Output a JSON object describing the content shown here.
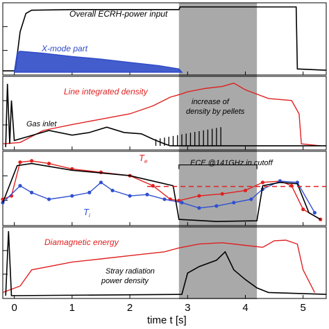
{
  "chart_data": [
    {
      "type": "line",
      "series": [
        {
          "name": "Overall ECRH-power input",
          "color": "#000000",
          "points": [
            [
              -0.2,
              0.02
            ],
            [
              0.0,
              0.02
            ],
            [
              0.02,
              0.05
            ],
            [
              0.1,
              0.62
            ],
            [
              0.2,
              0.9
            ],
            [
              0.3,
              0.95
            ],
            [
              1.0,
              0.96
            ],
            [
              2.0,
              0.96
            ],
            [
              2.85,
              0.96
            ],
            [
              2.87,
              1.0
            ],
            [
              3.5,
              1.0
            ],
            [
              4.0,
              1.0
            ],
            [
              4.6,
              1.0
            ],
            [
              4.88,
              1.0
            ],
            [
              4.9,
              0.05
            ],
            [
              5.4,
              0.03
            ]
          ]
        },
        {
          "name": "X-mode part",
          "color": "#2f4bc7",
          "points": [
            [
              0.0,
              0.0
            ],
            [
              0.05,
              0.3
            ],
            [
              0.1,
              0.32
            ],
            [
              0.5,
              0.29
            ],
            [
              1.0,
              0.24
            ],
            [
              1.5,
              0.2
            ],
            [
              2.0,
              0.15
            ],
            [
              2.5,
              0.1
            ],
            [
              2.85,
              0.05
            ],
            [
              2.9,
              0.0
            ]
          ]
        }
      ]
    },
    {
      "type": "line",
      "series": [
        {
          "name": "Line integrated density",
          "color": "#e02020",
          "points": [
            [
              -0.2,
              0.05
            ],
            [
              0.1,
              0.07
            ],
            [
              0.5,
              0.25
            ],
            [
              1.0,
              0.34
            ],
            [
              1.5,
              0.42
            ],
            [
              2.0,
              0.5
            ],
            [
              2.4,
              0.62
            ],
            [
              2.7,
              0.75
            ],
            [
              2.9,
              0.8
            ],
            [
              3.0,
              0.83
            ],
            [
              3.3,
              0.88
            ],
            [
              3.6,
              0.91
            ],
            [
              3.8,
              0.96
            ],
            [
              4.0,
              0.86
            ],
            [
              4.4,
              0.73
            ],
            [
              4.8,
              0.7
            ],
            [
              4.93,
              0.5
            ],
            [
              4.97,
              0.05
            ],
            [
              5.3,
              0.02
            ]
          ]
        },
        {
          "name": "Gas inlet",
          "color": "#000000",
          "points": [
            [
              -0.15,
              0.0
            ],
            [
              -0.12,
              0.95
            ],
            [
              -0.08,
              0.05
            ],
            [
              -0.05,
              0.7
            ],
            [
              0.0,
              0.1
            ],
            [
              0.2,
              0.15
            ],
            [
              0.6,
              0.25
            ],
            [
              1.0,
              0.18
            ],
            [
              1.3,
              0.22
            ],
            [
              1.6,
              0.3
            ],
            [
              1.9,
              0.22
            ],
            [
              2.2,
              0.2
            ],
            [
              2.4,
              0.12
            ],
            [
              2.6,
              0.05
            ],
            [
              2.7,
              0.02
            ],
            [
              5.4,
              0.02
            ]
          ]
        }
      ]
    },
    {
      "type": "line",
      "series": [
        {
          "name": "T_e",
          "color": "#e02020",
          "points": [
            [
              -0.2,
              0.35
            ],
            [
              -0.05,
              0.4
            ],
            [
              0.1,
              0.9
            ],
            [
              0.3,
              0.92
            ],
            [
              0.6,
              0.88
            ],
            [
              1.0,
              0.8
            ],
            [
              1.5,
              0.75
            ],
            [
              2.0,
              0.7
            ],
            [
              2.4,
              0.55
            ],
            [
              2.7,
              0.35
            ],
            [
              2.85,
              0.33
            ],
            [
              3.2,
              0.4
            ],
            [
              3.6,
              0.43
            ],
            [
              4.0,
              0.48
            ],
            [
              4.3,
              0.6
            ],
            [
              4.6,
              0.62
            ],
            [
              4.8,
              0.55
            ],
            [
              5.0,
              0.2
            ],
            [
              5.3,
              0.05
            ]
          ]
        },
        {
          "name": "T_i",
          "color": "#3050d0",
          "points": [
            [
              -0.2,
              0.3
            ],
            [
              0.1,
              0.55
            ],
            [
              0.3,
              0.45
            ],
            [
              0.6,
              0.35
            ],
            [
              1.0,
              0.4
            ],
            [
              1.3,
              0.45
            ],
            [
              1.5,
              0.6
            ],
            [
              1.7,
              0.48
            ],
            [
              2.0,
              0.4
            ],
            [
              2.3,
              0.42
            ],
            [
              2.6,
              0.35
            ],
            [
              2.9,
              0.3
            ],
            [
              3.2,
              0.22
            ],
            [
              3.5,
              0.25
            ],
            [
              3.8,
              0.3
            ],
            [
              4.1,
              0.35
            ],
            [
              4.3,
              0.5
            ],
            [
              4.6,
              0.62
            ],
            [
              4.9,
              0.6
            ],
            [
              5.2,
              0.15
            ]
          ]
        },
        {
          "name": "ECE @141GHz in cutoff",
          "color": "#000000",
          "points": [
            [
              -0.2,
              0.3
            ],
            [
              0.05,
              0.85
            ],
            [
              0.3,
              0.88
            ],
            [
              1.0,
              0.78
            ],
            [
              2.0,
              0.7
            ],
            [
              2.5,
              0.6
            ],
            [
              2.75,
              0.55
            ],
            [
              2.85,
              0.05
            ],
            [
              3.5,
              0.02
            ],
            [
              4.2,
              0.03
            ],
            [
              4.3,
              0.55
            ],
            [
              4.6,
              0.6
            ],
            [
              4.9,
              0.58
            ],
            [
              5.1,
              0.15
            ],
            [
              5.3,
              0.05
            ]
          ]
        }
      ]
    },
    {
      "type": "line",
      "series": [
        {
          "name": "Diamagnetic energy",
          "color": "#e02020",
          "points": [
            [
              -0.2,
              0.05
            ],
            [
              0.1,
              0.15
            ],
            [
              0.3,
              0.4
            ],
            [
              1.0,
              0.52
            ],
            [
              1.5,
              0.57
            ],
            [
              2.0,
              0.62
            ],
            [
              2.6,
              0.68
            ],
            [
              2.85,
              0.74
            ],
            [
              3.2,
              0.8
            ],
            [
              3.6,
              0.82
            ],
            [
              4.0,
              0.78
            ],
            [
              4.3,
              0.75
            ],
            [
              4.5,
              0.85
            ],
            [
              4.7,
              0.86
            ],
            [
              4.9,
              0.8
            ],
            [
              5.0,
              0.4
            ],
            [
              5.2,
              0.05
            ]
          ]
        },
        {
          "name": "Stray radiation power density",
          "color": "#000000",
          "points": [
            [
              -0.15,
              0.0
            ],
            [
              -0.1,
              1.0
            ],
            [
              -0.05,
              0.0
            ],
            [
              2.9,
              0.02
            ],
            [
              3.0,
              0.35
            ],
            [
              3.2,
              0.45
            ],
            [
              3.5,
              0.55
            ],
            [
              3.65,
              0.68
            ],
            [
              3.8,
              0.4
            ],
            [
              4.0,
              0.25
            ],
            [
              4.2,
              0.12
            ],
            [
              4.4,
              0.05
            ],
            [
              5.4,
              0.02
            ]
          ]
        }
      ]
    }
  ],
  "labels": {
    "power_title": "Overall ECRH-power input",
    "xmode": "X-mode part",
    "density": "Line integrated density",
    "pellets_line1": "increase of",
    "pellets_line2": "density by pellets",
    "gas": "Gas inlet",
    "ece": "ECE @141GHz in cutoff",
    "te": "T",
    "te_sub": "e",
    "ti": "T",
    "ti_sub": "i",
    "diamag": "Diamagnetic energy",
    "stray1": "Stray radiation",
    "stray2": "power density"
  },
  "axis": {
    "xlabel": "time t [s]",
    "xticks": [
      "0",
      "1",
      "2",
      "3",
      "4",
      "5"
    ],
    "xlim": [
      -0.2,
      5.4
    ],
    "shade_range": [
      2.85,
      4.2
    ]
  }
}
